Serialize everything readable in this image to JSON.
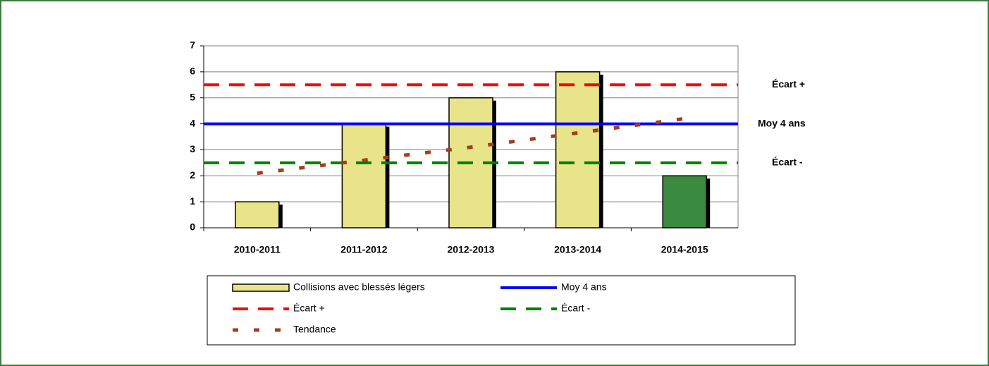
{
  "chart_data": {
    "type": "bar",
    "categories": [
      "2010-2011",
      "2011-2012",
      "2012-2013",
      "2013-2014",
      "2014-2015"
    ],
    "ylim": [
      0,
      7
    ],
    "yticks": [
      0,
      1,
      2,
      3,
      4,
      5,
      6,
      7
    ],
    "grid": true,
    "series": [
      {
        "name": "Collisions avec blessés légers",
        "type": "bar",
        "values": [
          1,
          4,
          5,
          6,
          2
        ],
        "colors": [
          "#e8e48a",
          "#e8e48a",
          "#e8e48a",
          "#e8e48a",
          "#3a8a3f"
        ],
        "color": "#e8e48a"
      },
      {
        "name": "Moy 4 ans",
        "type": "hline",
        "value": 4,
        "color": "#0000ff",
        "dash": "solid"
      },
      {
        "name": "Écart +",
        "type": "hline",
        "value": 5.5,
        "color": "#ff0000",
        "dash": "dashed"
      },
      {
        "name": "Écart -",
        "type": "hline",
        "value": 2.5,
        "color": "#008000",
        "dash": "dashed"
      },
      {
        "name": "Tendance",
        "type": "line",
        "values": [
          2.1,
          2.6,
          3.1,
          3.65,
          4.2
        ],
        "color": "#a0401a",
        "dash": "dotted"
      }
    ]
  }
}
